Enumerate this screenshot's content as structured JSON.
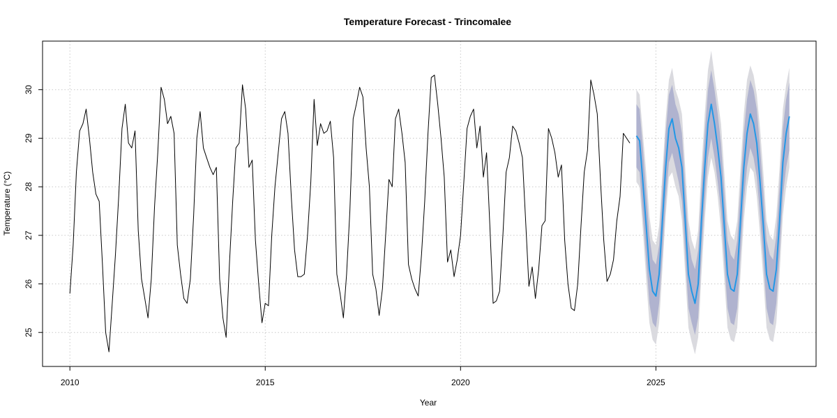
{
  "chart_data": {
    "type": "line",
    "title": "Temperature Forecast - Trincomalee",
    "xlabel": "Year",
    "ylabel": "Temperature (°C)",
    "xlim": [
      2009.3,
      2029.1
    ],
    "ylim": [
      24.3,
      31.0
    ],
    "x_ticks": [
      2010,
      2015,
      2020,
      2025
    ],
    "y_ticks": [
      25,
      26,
      27,
      28,
      29,
      30
    ],
    "grid": true,
    "colors": {
      "history": "#000000",
      "forecast": "#2297e6",
      "band80": "#b0b3cf",
      "band95": "#dadadf"
    },
    "series": [
      {
        "role": "history",
        "start": 2010.0,
        "step": 0.08333,
        "values": [
          25.8,
          26.8,
          28.3,
          29.15,
          29.3,
          29.6,
          29.0,
          28.3,
          27.85,
          27.7,
          26.4,
          25.0,
          24.6,
          25.6,
          26.6,
          27.8,
          29.2,
          29.7,
          28.9,
          28.8,
          29.15,
          27.1,
          26.1,
          25.7,
          25.3,
          26.1,
          27.6,
          28.7,
          30.05,
          29.8,
          29.3,
          29.45,
          29.1,
          26.8,
          26.2,
          25.7,
          25.6,
          26.1,
          27.4,
          29.0,
          29.55,
          28.8,
          28.6,
          28.4,
          28.25,
          28.4,
          26.1,
          25.3,
          24.9,
          26.4,
          27.7,
          28.8,
          28.9,
          30.1,
          29.6,
          28.4,
          28.55,
          26.9,
          26.0,
          25.2,
          25.6,
          25.55,
          27.0,
          28.0,
          28.7,
          29.4,
          29.55,
          29.1,
          27.8,
          26.7,
          26.15,
          26.15,
          26.2,
          27.0,
          28.1,
          29.8,
          28.85,
          29.3,
          29.1,
          29.15,
          29.35,
          28.6,
          26.2,
          25.8,
          25.3,
          26.2,
          27.5,
          29.4,
          29.7,
          30.05,
          29.85,
          28.8,
          28.0,
          26.2,
          25.9,
          25.35,
          25.9,
          27.0,
          28.15,
          28.0,
          29.4,
          29.6,
          29.1,
          28.5,
          26.4,
          26.1,
          25.9,
          25.75,
          26.6,
          27.7,
          29.1,
          30.25,
          30.3,
          29.7,
          29.0,
          28.2,
          26.45,
          26.7,
          26.15,
          26.5,
          27.0,
          28.1,
          29.2,
          29.45,
          29.6,
          28.8,
          29.25,
          28.2,
          28.7,
          27.2,
          25.6,
          25.65,
          25.85,
          27.0,
          28.3,
          28.6,
          29.25,
          29.15,
          28.9,
          28.6,
          27.3,
          25.95,
          26.35,
          25.7,
          26.3,
          27.2,
          27.3,
          29.2,
          29.0,
          28.7,
          28.2,
          28.45,
          26.9,
          26.0,
          25.5,
          25.45,
          26.0,
          27.2,
          28.3,
          28.75,
          30.2,
          29.9,
          29.5,
          28.1,
          26.9,
          26.05,
          26.2,
          26.5,
          27.3,
          27.8,
          29.1,
          29.0,
          28.9
        ]
      },
      {
        "role": "forecast",
        "start": 2024.5,
        "step": 0.08333,
        "values": [
          29.05,
          28.95,
          28.1,
          27.2,
          26.3,
          25.85,
          25.75,
          26.2,
          27.3,
          28.4,
          29.2,
          29.4,
          29.0,
          28.8,
          28.4,
          27.3,
          26.2,
          25.85,
          25.6,
          26.0,
          27.3,
          28.4,
          29.3,
          29.7,
          29.3,
          28.8,
          28.2,
          27.2,
          26.2,
          25.9,
          25.85,
          26.2,
          27.3,
          28.4,
          29.1,
          29.5,
          29.3,
          28.9,
          28.1,
          27.2,
          26.2,
          25.9,
          25.85,
          26.3,
          27.3,
          28.5,
          29.1,
          29.45
        ],
        "lower80": [
          28.4,
          28.3,
          27.4,
          26.5,
          25.6,
          25.2,
          25.1,
          25.6,
          26.6,
          27.7,
          28.5,
          28.7,
          28.4,
          28.1,
          27.7,
          26.6,
          25.5,
          25.2,
          24.95,
          25.3,
          26.6,
          27.7,
          28.6,
          29.0,
          28.6,
          28.1,
          27.5,
          26.5,
          25.5,
          25.2,
          25.15,
          25.5,
          26.6,
          27.7,
          28.4,
          28.8,
          28.6,
          28.2,
          27.4,
          26.5,
          25.5,
          25.2,
          25.15,
          25.6,
          26.6,
          27.8,
          28.4,
          28.75
        ],
        "upper80": [
          29.7,
          29.6,
          28.8,
          27.9,
          27.0,
          26.5,
          26.4,
          26.8,
          28.0,
          29.1,
          29.9,
          30.1,
          29.7,
          29.5,
          29.1,
          28.0,
          26.9,
          26.5,
          26.3,
          26.7,
          28.0,
          29.1,
          30.0,
          30.4,
          30.0,
          29.5,
          28.9,
          27.9,
          26.9,
          26.6,
          26.5,
          26.9,
          28.0,
          29.1,
          29.8,
          30.2,
          30.0,
          29.6,
          28.8,
          27.9,
          26.9,
          26.6,
          26.5,
          27.0,
          28.0,
          29.2,
          29.8,
          30.15
        ],
        "lower95": [
          28.1,
          28.0,
          27.1,
          26.1,
          25.2,
          24.85,
          24.75,
          25.2,
          26.3,
          27.4,
          28.2,
          28.3,
          28.0,
          27.8,
          27.3,
          26.2,
          25.1,
          24.8,
          24.55,
          24.9,
          26.2,
          27.3,
          28.2,
          28.6,
          28.3,
          27.8,
          27.1,
          26.1,
          25.1,
          24.85,
          24.8,
          25.1,
          26.2,
          27.3,
          28.0,
          28.4,
          28.3,
          27.8,
          27.0,
          26.1,
          25.1,
          24.85,
          24.8,
          25.2,
          26.2,
          27.4,
          28.0,
          28.4
        ],
        "upper95": [
          30.0,
          29.9,
          29.1,
          28.3,
          27.4,
          26.9,
          26.8,
          27.2,
          28.3,
          29.4,
          30.2,
          30.45,
          30.0,
          29.8,
          29.5,
          28.4,
          27.3,
          26.9,
          26.7,
          27.1,
          28.4,
          29.5,
          30.4,
          30.8,
          30.3,
          29.8,
          29.3,
          28.3,
          27.3,
          27.0,
          26.9,
          27.3,
          28.4,
          29.5,
          30.2,
          30.5,
          30.3,
          29.9,
          29.2,
          28.3,
          27.3,
          27.0,
          26.9,
          27.4,
          28.4,
          29.6,
          30.1,
          30.45
        ]
      }
    ]
  }
}
